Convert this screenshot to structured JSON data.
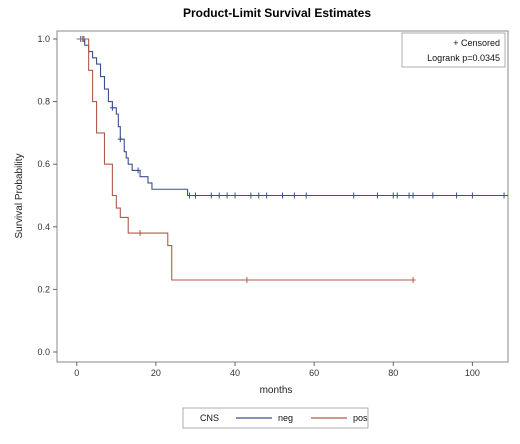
{
  "chart_data": {
    "type": "line",
    "title": "Product-Limit Survival Estimates",
    "xlabel": "months",
    "ylabel": "Survival Probability",
    "xlim": [
      -5,
      109
    ],
    "ylim": [
      0,
      1.0
    ],
    "xticks": [
      "0",
      "20",
      "40",
      "60",
      "80",
      "100"
    ],
    "yticks": [
      "0.0",
      "0.2",
      "0.4",
      "0.6",
      "0.8",
      "1.0"
    ],
    "grid": false,
    "legend_title": "CNS",
    "legend_placement": "bottom",
    "annotation": {
      "censored_label": "+ Censored",
      "logrank": "Logrank p=0.0345"
    },
    "series": [
      {
        "name": "neg",
        "color": "#3b4f8f",
        "steps": [
          [
            0,
            1.0
          ],
          [
            1.5,
            1.0
          ],
          [
            2,
            0.98
          ],
          [
            3,
            0.96
          ],
          [
            4,
            0.94
          ],
          [
            5,
            0.92
          ],
          [
            6,
            0.88
          ],
          [
            7,
            0.84
          ],
          [
            8,
            0.8
          ],
          [
            9,
            0.78
          ],
          [
            10,
            0.76
          ],
          [
            10.5,
            0.72
          ],
          [
            11,
            0.68
          ],
          [
            12,
            0.64
          ],
          [
            12.5,
            0.62
          ],
          [
            13,
            0.6
          ],
          [
            14,
            0.58
          ],
          [
            16,
            0.56
          ],
          [
            18,
            0.54
          ],
          [
            19,
            0.52
          ],
          [
            28,
            0.5
          ],
          [
            109,
            0.5
          ]
        ],
        "censored": [
          [
            1,
            1.0
          ],
          [
            1.8,
            1.0
          ],
          [
            9,
            0.78
          ],
          [
            11,
            0.68
          ],
          [
            15.5,
            0.58
          ],
          [
            28.5,
            0.5
          ],
          [
            30,
            0.5
          ],
          [
            34,
            0.5
          ],
          [
            36,
            0.5
          ],
          [
            38,
            0.5
          ],
          [
            40,
            0.5
          ],
          [
            44,
            0.5
          ],
          [
            46,
            0.5
          ],
          [
            48,
            0.5
          ],
          [
            52,
            0.5
          ],
          [
            55,
            0.5
          ],
          [
            58,
            0.5
          ],
          [
            70,
            0.5
          ],
          [
            76,
            0.5
          ],
          [
            80,
            0.5
          ],
          [
            81,
            0.5
          ],
          [
            84,
            0.5
          ],
          [
            85,
            0.5
          ],
          [
            90,
            0.5
          ],
          [
            96,
            0.5
          ],
          [
            100,
            0.5
          ],
          [
            108,
            0.5
          ]
        ]
      },
      {
        "name": "pos",
        "color": "#b05a4a",
        "steps": [
          [
            0,
            1.0
          ],
          [
            2,
            1.0
          ],
          [
            3,
            0.9
          ],
          [
            4,
            0.8
          ],
          [
            5,
            0.7
          ],
          [
            7,
            0.6
          ],
          [
            9,
            0.5
          ],
          [
            10,
            0.46
          ],
          [
            11,
            0.43
          ],
          [
            13,
            0.38
          ],
          [
            23,
            0.34
          ],
          [
            24,
            0.23
          ],
          [
            85,
            0.23
          ]
        ],
        "censored": [
          [
            1.5,
            1.0
          ],
          [
            16,
            0.38
          ],
          [
            43,
            0.23
          ],
          [
            85,
            0.23
          ]
        ]
      }
    ]
  }
}
